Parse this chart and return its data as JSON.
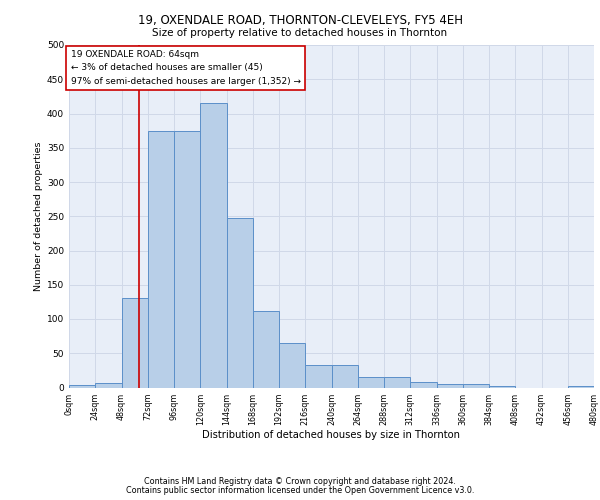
{
  "title1": "19, OXENDALE ROAD, THORNTON-CLEVELEYS, FY5 4EH",
  "title2": "Size of property relative to detached houses in Thornton",
  "xlabel": "Distribution of detached houses by size in Thornton",
  "ylabel": "Number of detached properties",
  "bar_values": [
    4,
    6,
    130,
    375,
    375,
    415,
    247,
    111,
    65,
    33,
    33,
    15,
    15,
    8,
    5,
    5,
    2,
    0,
    0,
    2
  ],
  "bin_edges": [
    0,
    24,
    48,
    72,
    96,
    120,
    144,
    168,
    192,
    216,
    240,
    264,
    288,
    312,
    336,
    360,
    384,
    408,
    432,
    456,
    480
  ],
  "tick_labels": [
    "0sqm",
    "24sqm",
    "48sqm",
    "72sqm",
    "96sqm",
    "120sqm",
    "144sqm",
    "168sqm",
    "192sqm",
    "216sqm",
    "240sqm",
    "264sqm",
    "288sqm",
    "312sqm",
    "336sqm",
    "360sqm",
    "384sqm",
    "408sqm",
    "432sqm",
    "456sqm",
    "480sqm"
  ],
  "bar_color": "#b8cfe8",
  "bar_edge_color": "#5b8fc9",
  "property_line_x": 64,
  "property_line_color": "#cc0000",
  "annotation_text": "19 OXENDALE ROAD: 64sqm\n← 3% of detached houses are smaller (45)\n97% of semi-detached houses are larger (1,352) →",
  "annotation_box_color": "#cc0000",
  "ylim": [
    0,
    500
  ],
  "yticks": [
    0,
    50,
    100,
    150,
    200,
    250,
    300,
    350,
    400,
    450,
    500
  ],
  "grid_color": "#d0d8e8",
  "bg_color": "#e8eef8",
  "footer1": "Contains HM Land Registry data © Crown copyright and database right 2024.",
  "footer2": "Contains public sector information licensed under the Open Government Licence v3.0."
}
